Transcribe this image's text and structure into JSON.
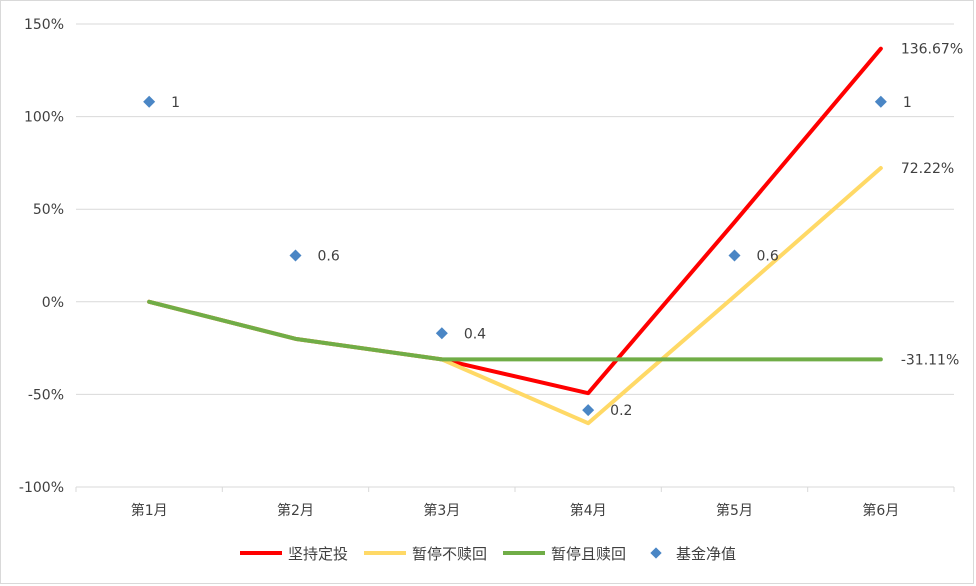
{
  "chart_data": {
    "type": "line",
    "categories": [
      "第1月",
      "第2月",
      "第3月",
      "第4月",
      "第5月",
      "第6月"
    ],
    "ylim": [
      -100,
      150
    ],
    "yticks": [
      -100,
      -50,
      0,
      50,
      100,
      150
    ],
    "ytick_labels": [
      "-100%",
      "-50%",
      "0%",
      "50%",
      "100%",
      "150%"
    ],
    "series": [
      {
        "name": "坚持定投",
        "color": "#ff0000",
        "values": [
          0,
          -20,
          -31.11,
          -49.33,
          43,
          136.67
        ],
        "end_label": "136.67%"
      },
      {
        "name": "暂停不赎回",
        "color": "#ffd966",
        "values": [
          0,
          -20,
          -31.11,
          -65.56,
          3,
          72.22
        ],
        "end_label": "72.22%"
      },
      {
        "name": "暂停且赎回",
        "color": "#70ad47",
        "values": [
          0,
          -20,
          -31.11,
          -31.11,
          -31.11,
          -31.11
        ],
        "end_label": "-31.11%"
      }
    ],
    "scatter_series": {
      "name": "基金净值",
      "color": "#4a86c5",
      "values": [
        1,
        0.6,
        0.4,
        0.2,
        0.6,
        1
      ],
      "plot_y": [
        108,
        25,
        -17,
        -58.5,
        25,
        108
      ],
      "labels": [
        "1",
        "0.6",
        "0.4",
        "0.2",
        "0.6",
        "1"
      ]
    },
    "grid": true,
    "legend_position": "bottom"
  }
}
